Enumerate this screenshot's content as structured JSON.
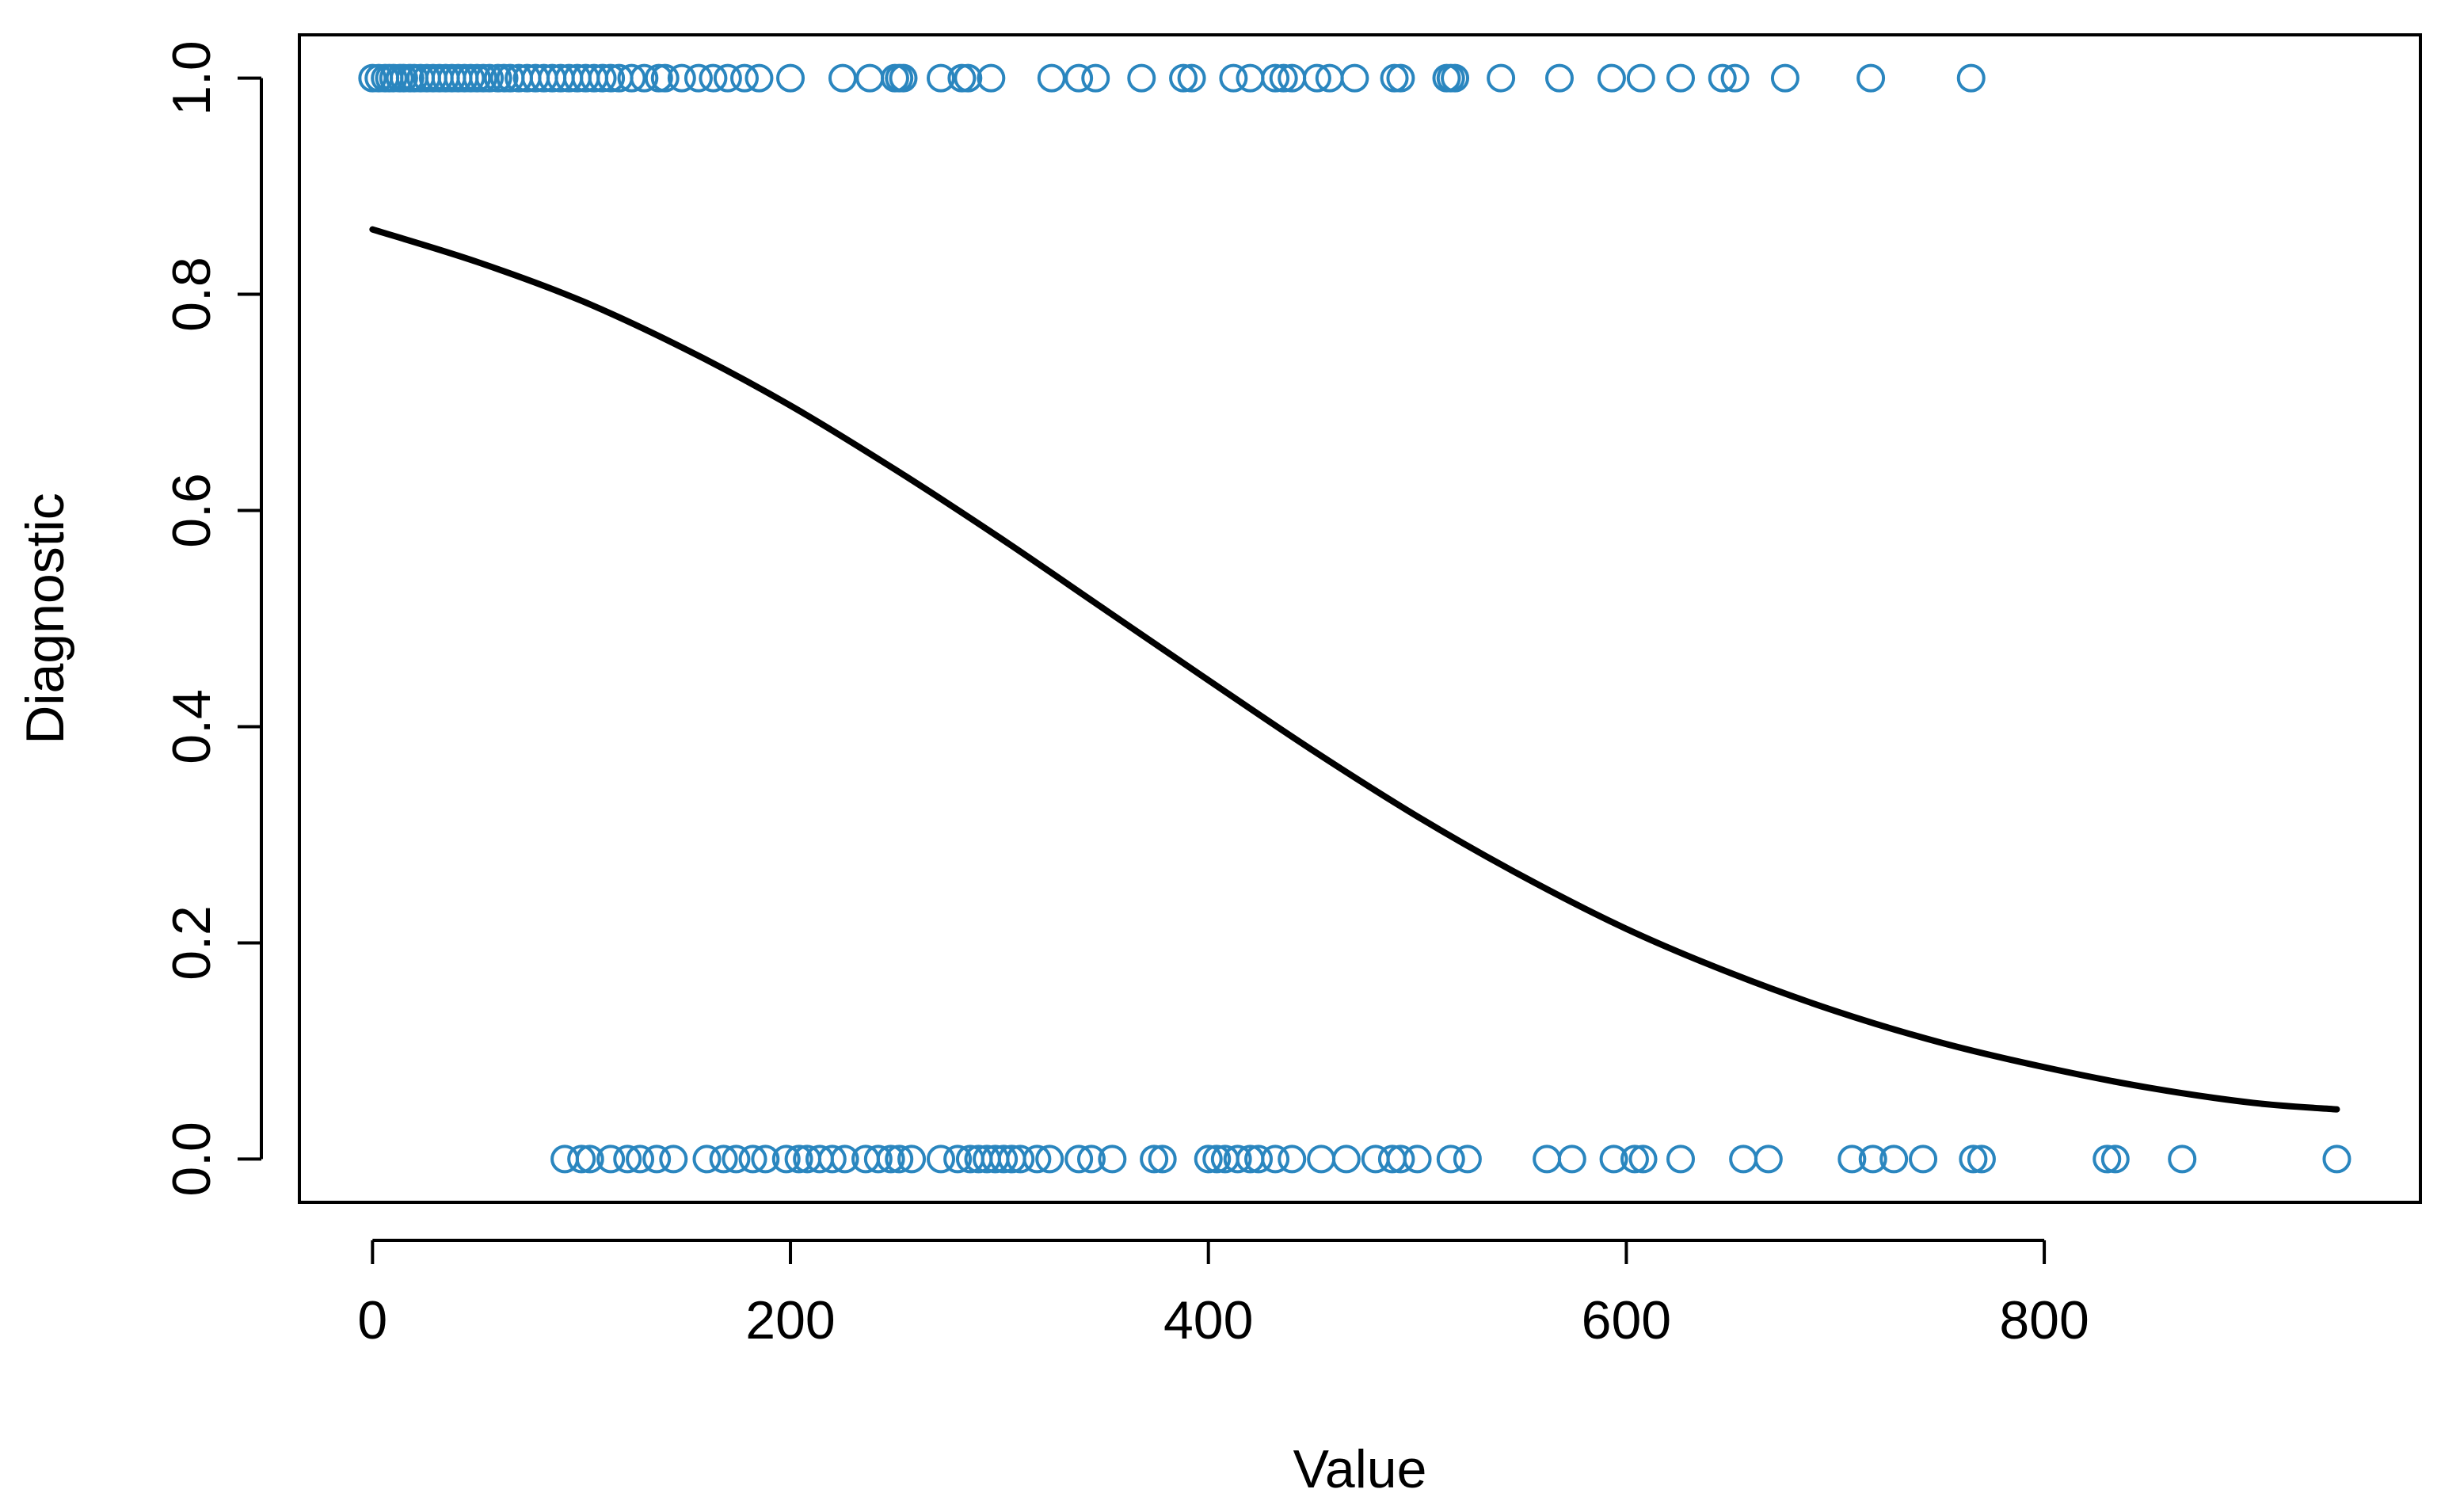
{
  "chart_data": {
    "type": "scatter",
    "xlabel": "Value",
    "ylabel": "Diagnostic",
    "xlim": [
      -35,
      980
    ],
    "ylim": [
      -0.04,
      1.04
    ],
    "x_ticks": [
      0,
      200,
      400,
      600,
      800
    ],
    "x_tick_labels": [
      "0",
      "200",
      "400",
      "600",
      "800"
    ],
    "y_ticks": [
      0.0,
      0.2,
      0.4,
      0.6,
      0.8,
      1.0
    ],
    "y_tick_labels": [
      "0.0",
      "0.2",
      "0.4",
      "0.6",
      "0.8",
      "1.0"
    ],
    "grid": false,
    "legend": "none",
    "colors": {
      "points": "#2a86bf",
      "curve": "#000000",
      "frame": "#000000"
    },
    "series": [
      {
        "marker": "open-circle",
        "y": 1,
        "x": [
          0,
          3,
          6,
          8,
          10,
          13,
          15,
          18,
          20,
          23,
          26,
          29,
          32,
          35,
          38,
          41,
          44,
          47,
          50,
          53,
          56,
          60,
          63,
          66,
          70,
          74,
          78,
          82,
          86,
          90,
          94,
          98,
          102,
          106,
          110,
          114,
          118,
          124,
          130,
          137,
          140,
          148,
          156,
          163,
          170,
          178,
          185,
          200,
          225,
          238,
          250,
          252,
          254,
          272,
          282,
          285,
          296,
          325,
          338,
          346,
          368,
          388,
          392,
          412,
          420,
          432,
          436,
          440,
          452,
          458,
          470,
          489,
          492,
          514,
          516,
          518,
          540,
          568,
          593,
          607,
          626,
          646,
          652,
          676,
          717,
          765
        ],
        "values": [
          1,
          1,
          1,
          1,
          1,
          1,
          1,
          1,
          1,
          1,
          1,
          1,
          1,
          1,
          1,
          1,
          1,
          1,
          1,
          1,
          1,
          1,
          1,
          1,
          1,
          1,
          1,
          1,
          1,
          1,
          1,
          1,
          1,
          1,
          1,
          1,
          1,
          1,
          1,
          1,
          1,
          1,
          1,
          1,
          1,
          1,
          1,
          1,
          1,
          1,
          1,
          1,
          1,
          1,
          1,
          1,
          1,
          1,
          1,
          1,
          1,
          1,
          1,
          1,
          1,
          1,
          1,
          1,
          1,
          1,
          1,
          1,
          1,
          1,
          1,
          1,
          1,
          1,
          1,
          1,
          1,
          1,
          1,
          1,
          1,
          1
        ]
      },
      {
        "marker": "open-circle",
        "y": 0,
        "x": [
          92,
          100,
          104,
          114,
          122,
          128,
          136,
          144,
          160,
          168,
          174,
          182,
          188,
          198,
          204,
          208,
          214,
          220,
          226,
          236,
          242,
          248,
          252,
          258,
          272,
          280,
          286,
          290,
          294,
          298,
          302,
          306,
          310,
          318,
          324,
          338,
          344,
          354,
          374,
          378,
          400,
          404,
          408,
          414,
          420,
          424,
          432,
          440,
          454,
          466,
          480,
          488,
          492,
          500,
          516,
          524,
          562,
          574,
          594,
          604,
          608,
          626,
          656,
          668,
          708,
          718,
          728,
          742,
          766,
          770,
          830,
          834,
          866,
          940
        ],
        "values": [
          0,
          0,
          0,
          0,
          0,
          0,
          0,
          0,
          0,
          0,
          0,
          0,
          0,
          0,
          0,
          0,
          0,
          0,
          0,
          0,
          0,
          0,
          0,
          0,
          0,
          0,
          0,
          0,
          0,
          0,
          0,
          0,
          0,
          0,
          0,
          0,
          0,
          0,
          0,
          0,
          0,
          0,
          0,
          0,
          0,
          0,
          0,
          0,
          0,
          0,
          0,
          0,
          0,
          0,
          0,
          0,
          0,
          0,
          0,
          0,
          0,
          0,
          0,
          0,
          0,
          0,
          0,
          0,
          0,
          0,
          0,
          0,
          0,
          0
        ]
      },
      {
        "marker": "line",
        "x": [
          0,
          50,
          100,
          150,
          200,
          250,
          300,
          350,
          400,
          450,
          500,
          550,
          600,
          650,
          700,
          750,
          800,
          850,
          900,
          940
        ],
        "values": [
          0.86,
          0.83,
          0.794,
          0.749,
          0.697,
          0.638,
          0.575,
          0.509,
          0.443,
          0.378,
          0.317,
          0.262,
          0.213,
          0.172,
          0.137,
          0.108,
          0.085,
          0.066,
          0.052,
          0.046
        ]
      }
    ]
  }
}
